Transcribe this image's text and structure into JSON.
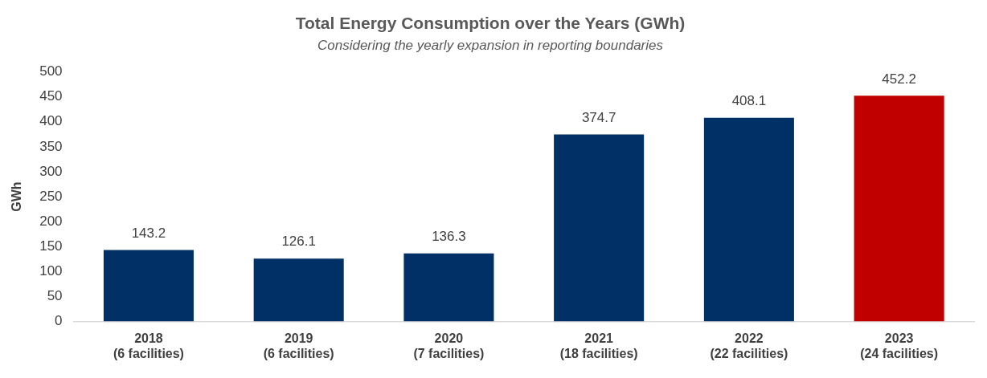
{
  "chart_data": {
    "type": "bar",
    "title": "Total Energy Consumption over the Years (GWh)",
    "subtitle": "Considering the yearly expansion in reporting boundaries",
    "ylabel": "GWh",
    "categories": [
      "2018\n(6 facilities)",
      "2019\n(6 facilities)",
      "2020\n(7 facilities)",
      "2021\n(18 facilities)",
      "2022\n(22 facilities)",
      "2023\n(24 facilities)"
    ],
    "values": [
      143.2,
      126.1,
      136.3,
      374.7,
      408.1,
      452.2
    ],
    "colors": [
      "#003066",
      "#003066",
      "#003066",
      "#003066",
      "#003066",
      "#c00000"
    ],
    "ylim": [
      0,
      500
    ],
    "yticks": [
      0,
      50,
      100,
      150,
      200,
      250,
      300,
      350,
      400,
      450,
      500
    ],
    "grid": false,
    "legend": false,
    "data_labels": true
  }
}
